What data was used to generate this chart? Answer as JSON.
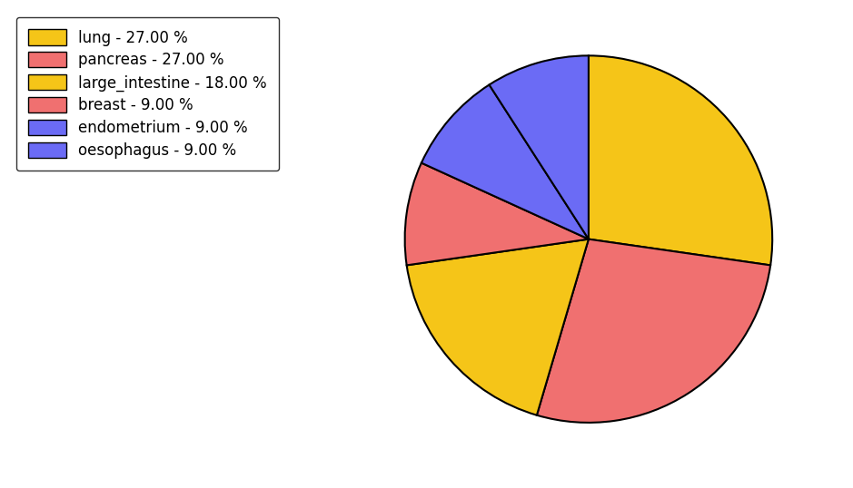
{
  "labels": [
    "lung",
    "pancreas",
    "large_intestine",
    "breast",
    "endometrium",
    "oesophagus"
  ],
  "values": [
    27,
    27,
    18,
    9,
    9,
    9
  ],
  "colors": [
    "#F5C518",
    "#F07070",
    "#F5C518",
    "#F07070",
    "#6B6BF5",
    "#6B6BF5"
  ],
  "legend_labels": [
    "lung - 27.00 %",
    "pancreas - 27.00 %",
    "large_intestine - 18.00 %",
    "breast - 9.00 %",
    "endometrium - 9.00 %",
    "oesophagus - 9.00 %"
  ],
  "legend_colors": [
    "#F5C518",
    "#F07070",
    "#F5C518",
    "#F07070",
    "#6B6BF5",
    "#6B6BF5"
  ],
  "background_color": "#ffffff",
  "startangle": 90,
  "figsize": [
    9.39,
    5.38
  ],
  "dpi": 100
}
